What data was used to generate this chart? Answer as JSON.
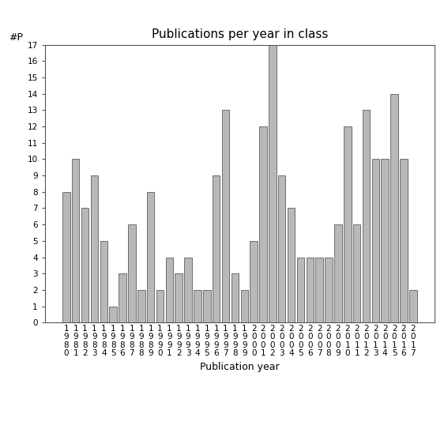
{
  "title": "Publications per year in class",
  "xlabel": "Publication year",
  "ylabel": "#P",
  "years": [
    "1980",
    "1981",
    "1982",
    "1983",
    "1984",
    "1985",
    "1986",
    "1987",
    "1988",
    "1989",
    "1990",
    "1991",
    "1992",
    "1993",
    "1994",
    "1995",
    "1996",
    "1997",
    "1998",
    "1999",
    "2000",
    "2001",
    "2002",
    "2003",
    "2004",
    "2005",
    "2006",
    "2007",
    "2008",
    "2009",
    "2010",
    "2011",
    "2012",
    "2013",
    "2014",
    "2015",
    "2016",
    "2017"
  ],
  "values": [
    8,
    10,
    7,
    9,
    5,
    1,
    3,
    6,
    2,
    8,
    2,
    4,
    3,
    4,
    2,
    2,
    9,
    13,
    3,
    2,
    5,
    12,
    17,
    9,
    7,
    4,
    4,
    4,
    4,
    6,
    12,
    6,
    13,
    10,
    10,
    14,
    10,
    2
  ],
  "bar_color": "#b8b8b8",
  "bar_edge_color": "#444444",
  "ylim": [
    0,
    17
  ],
  "yticks": [
    0,
    1,
    2,
    3,
    4,
    5,
    6,
    7,
    8,
    9,
    10,
    11,
    12,
    13,
    14,
    15,
    16,
    17
  ],
  "bg_color": "#ffffff",
  "title_fontsize": 11,
  "axis_label_fontsize": 9,
  "tick_fontsize": 7.5
}
